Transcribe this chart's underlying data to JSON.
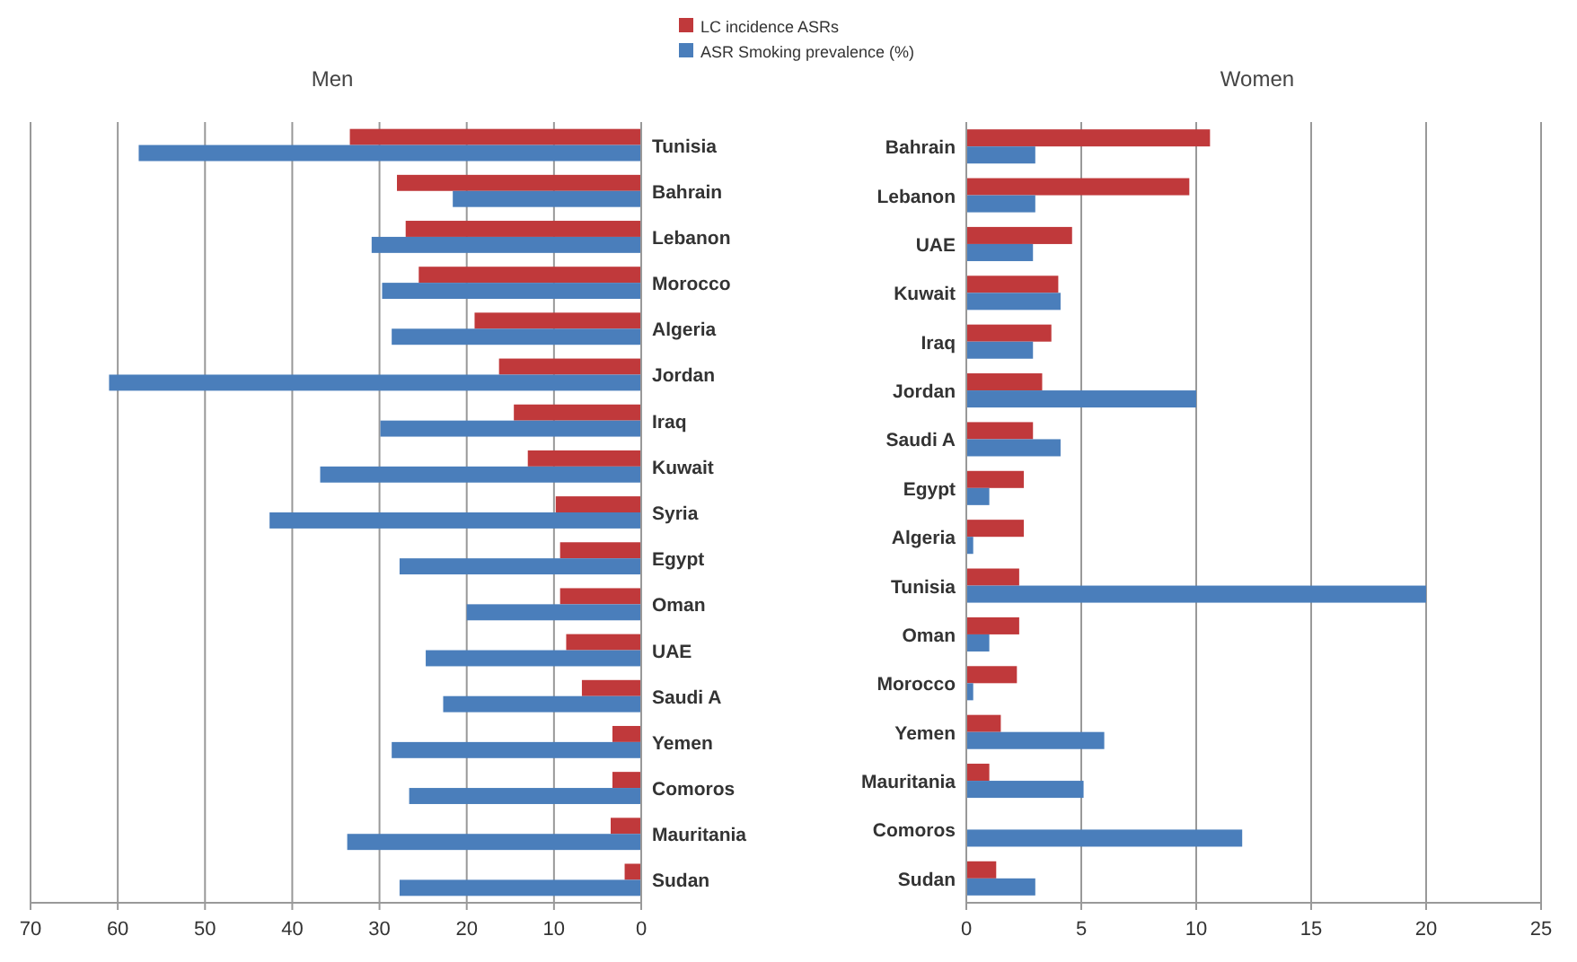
{
  "chart_data": [
    {
      "type": "bar",
      "orientation": "horizontal",
      "title": "Men",
      "categories": [
        "Tunisia",
        "Bahrain",
        "Lebanon",
        "Morocco",
        "Algeria",
        "Jordan",
        "Iraq",
        "Kuwait",
        "Syria",
        "Egypt",
        "Oman",
        "UAE",
        "Saudi A",
        "Yemen",
        "Comoros",
        "Mauritania",
        "Sudan"
      ],
      "series": [
        {
          "name": "LC incidence ASRs",
          "color": "#c0393b",
          "values": [
            33.4,
            28,
            27,
            25.5,
            19.1,
            16.3,
            14.6,
            13,
            9.8,
            9.3,
            9.3,
            8.6,
            6.8,
            3.3,
            3.3,
            3.5,
            1.9
          ]
        },
        {
          "name": "ASR Smoking prevalence (%)",
          "color": "#4a7ebb",
          "values": [
            57.6,
            21.6,
            30.9,
            29.7,
            28.6,
            61,
            29.9,
            36.8,
            42.6,
            27.7,
            20,
            24.7,
            22.7,
            28.6,
            26.6,
            33.7,
            27.7
          ]
        }
      ],
      "xlim": [
        70,
        0
      ],
      "xticks": [
        70,
        60,
        50,
        40,
        30,
        20,
        10,
        0
      ],
      "grid": "x",
      "legend": "top right"
    },
    {
      "type": "bar",
      "orientation": "horizontal",
      "title": "Women",
      "categories": [
        "Bahrain",
        "Lebanon",
        "UAE",
        "Kuwait",
        "Iraq",
        "Jordan",
        "Saudi A",
        "Egypt",
        "Algeria",
        "Tunisia",
        "Oman",
        "Morocco",
        "Yemen",
        "Mauritania",
        "Comoros",
        "Sudan"
      ],
      "series": [
        {
          "color": "#c0393b",
          "values": [
            10.6,
            9.7,
            4.6,
            4,
            3.7,
            3.3,
            2.9,
            2.5,
            2.5,
            2.3,
            2.3,
            2.2,
            1.5,
            1,
            0,
            1.3
          ]
        },
        {
          "color": "#4a7ebb",
          "values": [
            3,
            3,
            2.9,
            4.1,
            2.9,
            10,
            4.1,
            1,
            0.3,
            20,
            1,
            0.3,
            6,
            5.1,
            12,
            3
          ]
        }
      ],
      "xlim": [
        0,
        25
      ],
      "xticks": [
        0,
        5,
        10,
        15,
        20,
        25
      ],
      "grid": "x"
    }
  ]
}
